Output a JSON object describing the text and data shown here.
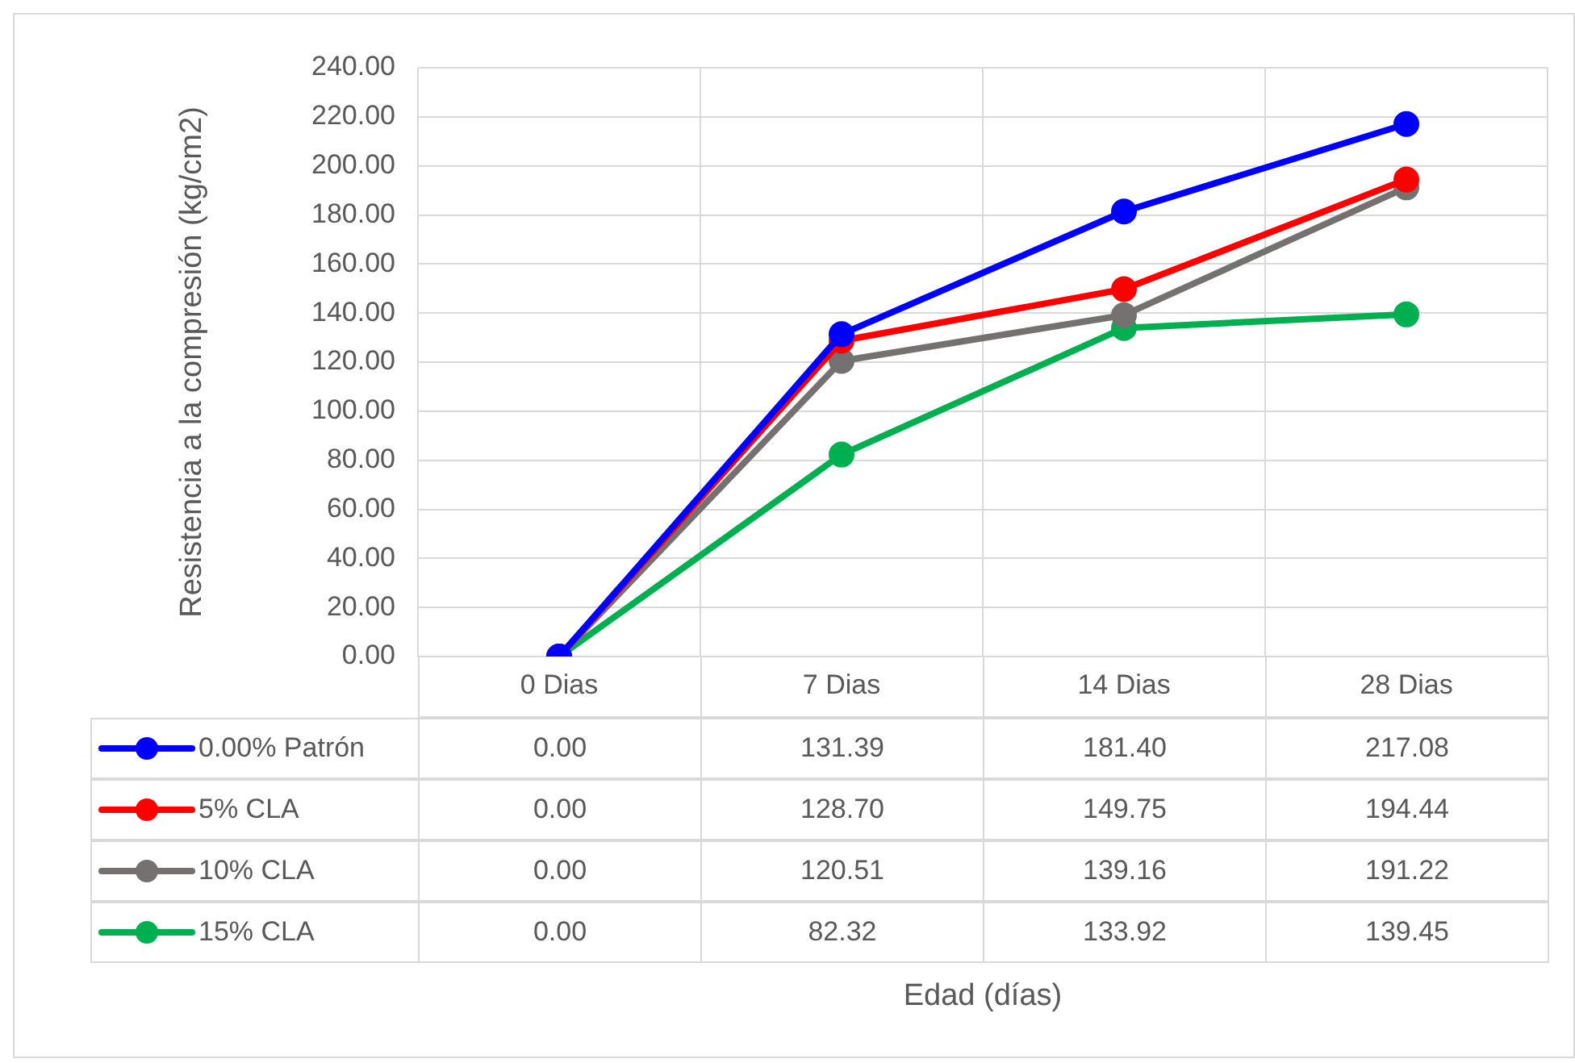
{
  "chart_data": {
    "type": "line",
    "annotations": [
      "Edad (días)"
    ],
    "ylabel": "Resistencia a la compresión (kg/cm2)",
    "categories": [
      "0 Dias",
      "7 Dias",
      "14 Dias",
      "28 Dias"
    ],
    "series": [
      {
        "name": "0.00% Patrón",
        "color": "#0000ff",
        "values": [
          0,
          131.39,
          181.4,
          217.08
        ],
        "value_labels": [
          "0.00",
          "131.39",
          "181.40",
          "217.08"
        ]
      },
      {
        "name": "5% CLA",
        "color": "#ff0000",
        "values": [
          0,
          128.7,
          149.75,
          194.44
        ],
        "value_labels": [
          "0.00",
          "128.70",
          "149.75",
          "194.44"
        ]
      },
      {
        "name": "10% CLA",
        "color": "#767171",
        "values": [
          0,
          120.51,
          139.16,
          191.22
        ],
        "value_labels": [
          "0.00",
          "120.51",
          "139.16",
          "191.22"
        ]
      },
      {
        "name": "15% CLA",
        "color": "#00b050",
        "values": [
          0,
          82.32,
          133.92,
          139.45
        ],
        "value_labels": [
          "0.00",
          "82.32",
          "133.92",
          "139.45"
        ]
      }
    ],
    "ylim": [
      0,
      240
    ],
    "yticks": [
      {
        "value": 0,
        "label": "0.00"
      },
      {
        "value": 20,
        "label": "20.00"
      },
      {
        "value": 40,
        "label": "40.00"
      },
      {
        "value": 60,
        "label": "60.00"
      },
      {
        "value": 80,
        "label": "80.00"
      },
      {
        "value": 100,
        "label": "100.00"
      },
      {
        "value": 120,
        "label": "120.00"
      },
      {
        "value": 140,
        "label": "140.00"
      },
      {
        "value": 160,
        "label": "160.00"
      },
      {
        "value": 180,
        "label": "180.00"
      },
      {
        "value": 200,
        "label": "200.00"
      },
      {
        "value": 220,
        "label": "220.00"
      },
      {
        "value": 240,
        "label": "240.00"
      }
    ],
    "grid": true,
    "legend": "bottom",
    "marker": "circle",
    "line_style": "solid"
  }
}
